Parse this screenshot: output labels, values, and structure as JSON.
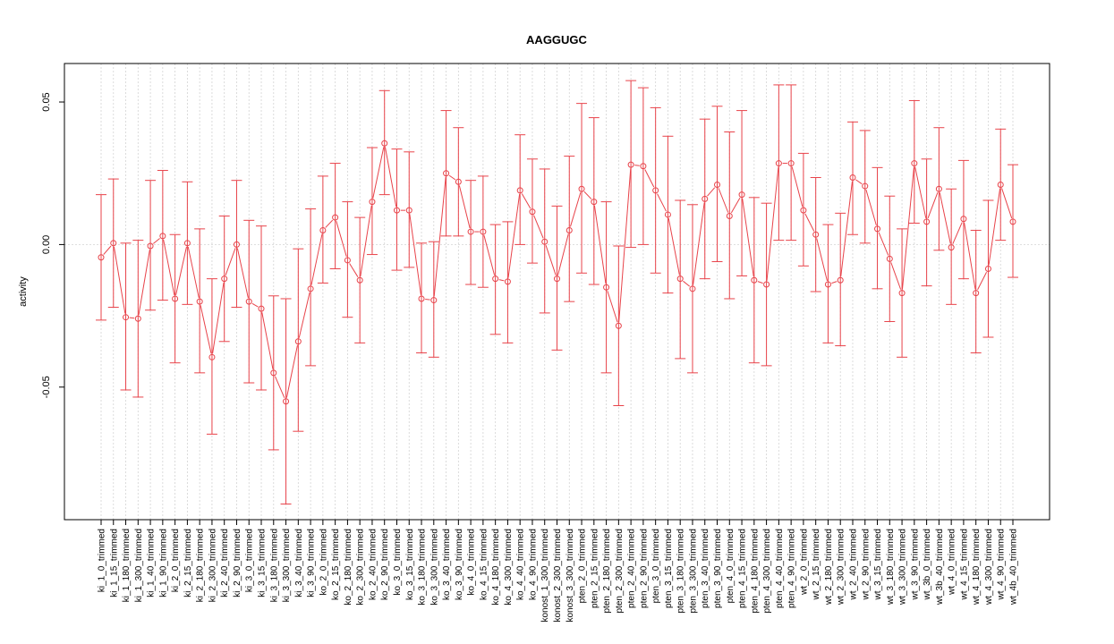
{
  "chart_data": {
    "type": "line",
    "title": "AAGGUGC",
    "xlabel": "",
    "ylabel": "activity",
    "ylim": [
      -0.0965,
      0.0635
    ],
    "yticks": [
      -0.05,
      0.0,
      0.05
    ],
    "ytick_labels": [
      "-0.05",
      "0.00",
      "0.05"
    ],
    "grid": true,
    "legend": "none",
    "color": "#e8434a",
    "grid_color": "#d3d3d3",
    "categories": [
      "ki_1_0_trimmed",
      "ki_1_15_trimmed",
      "ki_1_180_trimmed",
      "ki_1_300_trimmed",
      "ki_1_40_trimmed",
      "ki_1_90_trimmed",
      "ki_2_0_trimmed",
      "ki_2_15_trimmed",
      "ki_2_180_trimmed",
      "ki_2_300_trimmed",
      "ki_2_40_trimmed",
      "ki_2_90_trimmed",
      "ki_3_0_trimmed",
      "ki_3_15_trimmed",
      "ki_3_180_trimmed",
      "ki_3_300_trimmed",
      "ki_3_40_trimmed",
      "ki_3_90_trimmed",
      "ko_2_0_trimmed",
      "ko_2_15_trimmed",
      "ko_2_180_trimmed",
      "ko_2_300_trimmed",
      "ko_2_40_trimmed",
      "ko_2_90_trimmed",
      "ko_3_0_trimmed",
      "ko_3_15_trimmed",
      "ko_3_180_trimmed",
      "ko_3_300_trimmed",
      "ko_3_40_trimmed",
      "ko_3_90_trimmed",
      "ko_4_0_trimmed",
      "ko_4_15_trimmed",
      "ko_4_180_trimmed",
      "ko_4_300_trimmed",
      "ko_4_40_trimmed",
      "ko_4_90_trimmed",
      "konost_1_300_trimmed",
      "konost_2_300_trimmed",
      "konost_3_300_trimmed",
      "pten_2_0_trimmed",
      "pten_2_15_trimmed",
      "pten_2_180_trimmed",
      "pten_2_300_trimmed",
      "pten_2_40_trimmed",
      "pten_2_90_trimmed",
      "pten_3_0_trimmed",
      "pten_3_15_trimmed",
      "pten_3_180_trimmed",
      "pten_3_300_trimmed",
      "pten_3_40_trimmed",
      "pten_3_90_trimmed",
      "pten_4_0_trimmed",
      "pten_4_15_trimmed",
      "pten_4_180_trimmed",
      "pten_4_300_trimmed",
      "pten_4_40_trimmed",
      "pten_4_90_trimmed",
      "wt_2_0_trimmed",
      "wt_2_15_trimmed",
      "wt_2_180_trimmed",
      "wt_2_300_trimmed",
      "wt_2_40_trimmed",
      "wt_2_90_trimmed",
      "wt_3_15_trimmed",
      "wt_3_180_trimmed",
      "wt_3_300_trimmed",
      "wt_3_90_trimmed",
      "wt_3b_0_trimmed",
      "wt_3b_40_trimmed",
      "wt_4_0_trimmed",
      "wt_4_15_trimmed",
      "wt_4_180_trimmed",
      "wt_4_300_trimmed",
      "wt_4_90_trimmed",
      "wt_4b_40_trimmed"
    ],
    "series": [
      {
        "values": [
          -0.0045,
          0.0005,
          -0.0255,
          -0.026,
          -0.0005,
          0.003,
          -0.019,
          0.0005,
          -0.02,
          -0.0395,
          -0.012,
          0.0,
          -0.02,
          -0.0225,
          -0.045,
          -0.055,
          -0.034,
          -0.0155,
          0.005,
          0.0095,
          -0.0055,
          -0.0125,
          0.015,
          0.0355,
          0.012,
          0.012,
          -0.019,
          -0.0195,
          0.025,
          0.022,
          0.0045,
          0.0045,
          -0.012,
          -0.013,
          0.019,
          0.0115,
          0.001,
          -0.012,
          0.005,
          0.0195,
          0.015,
          -0.015,
          -0.0285,
          0.028,
          0.0275,
          0.019,
          0.0105,
          -0.012,
          -0.0155,
          0.016,
          0.021,
          0.01,
          0.0175,
          -0.0125,
          -0.014,
          0.0285,
          0.0285,
          0.012,
          0.0035,
          -0.014,
          -0.0125,
          0.0235,
          0.0205,
          0.0055,
          -0.005,
          -0.017,
          0.0285,
          0.008,
          0.0195,
          -0.001,
          0.009,
          -0.017,
          -0.0085,
          0.021,
          0.008
        ],
        "lower": [
          -0.0265,
          -0.022,
          -0.051,
          -0.0535,
          -0.023,
          -0.0195,
          -0.0415,
          -0.021,
          -0.045,
          -0.0665,
          -0.034,
          -0.022,
          -0.0485,
          -0.051,
          -0.072,
          -0.091,
          -0.0655,
          -0.0425,
          -0.0135,
          -0.0085,
          -0.0255,
          -0.0345,
          -0.0035,
          0.0175,
          -0.009,
          -0.008,
          -0.038,
          -0.0395,
          0.003,
          0.003,
          -0.014,
          -0.015,
          -0.0315,
          -0.0345,
          0.0,
          -0.0065,
          -0.024,
          -0.037,
          -0.02,
          -0.01,
          -0.014,
          -0.045,
          -0.0565,
          -0.001,
          0.0,
          -0.01,
          -0.017,
          -0.04,
          -0.045,
          -0.012,
          -0.006,
          -0.019,
          -0.011,
          -0.0415,
          -0.0425,
          0.0015,
          0.0015,
          -0.0075,
          -0.0165,
          -0.0345,
          -0.0355,
          0.0035,
          0.0005,
          -0.0155,
          -0.027,
          -0.0395,
          0.0075,
          -0.0145,
          -0.002,
          -0.021,
          -0.012,
          -0.038,
          -0.0325,
          0.0015,
          -0.0115
        ],
        "upper": [
          0.0175,
          0.023,
          0.0005,
          0.0015,
          0.0225,
          0.026,
          0.0035,
          0.022,
          0.0055,
          -0.012,
          0.01,
          0.0225,
          0.0085,
          0.0065,
          -0.018,
          -0.019,
          -0.0015,
          0.0125,
          0.024,
          0.0285,
          0.015,
          0.0095,
          0.034,
          0.054,
          0.0335,
          0.0325,
          0.0005,
          0.001,
          0.047,
          0.041,
          0.0225,
          0.024,
          0.007,
          0.008,
          0.0385,
          0.03,
          0.0265,
          0.0135,
          0.031,
          0.0495,
          0.0445,
          0.015,
          -0.0005,
          0.0575,
          0.055,
          0.048,
          0.038,
          0.0155,
          0.014,
          0.044,
          0.0485,
          0.0395,
          0.047,
          0.0165,
          0.0145,
          0.056,
          0.056,
          0.032,
          0.0235,
          0.007,
          0.011,
          0.043,
          0.04,
          0.027,
          0.017,
          0.0055,
          0.0505,
          0.03,
          0.041,
          0.0195,
          0.0295,
          0.005,
          0.0155,
          0.0405,
          0.028
        ]
      }
    ]
  }
}
